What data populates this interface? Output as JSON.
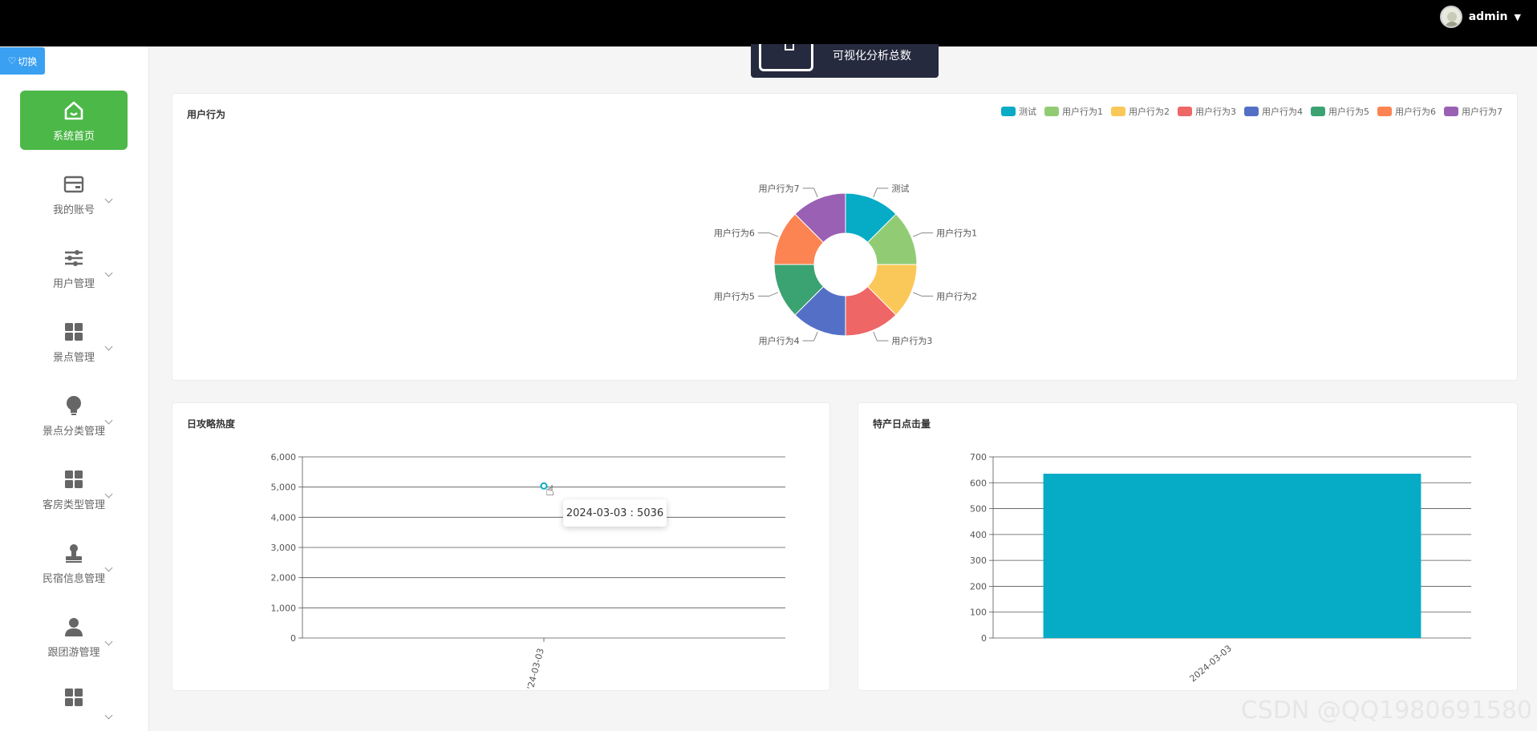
{
  "topbar": {
    "username": "admin",
    "caret": "▼"
  },
  "switch_button": {
    "label": "切换",
    "icon": "heart-icon"
  },
  "sidebar": {
    "items": [
      {
        "label": "系统首页",
        "icon": "home-icon",
        "active": true
      },
      {
        "label": "我的账号",
        "icon": "wallet-icon"
      },
      {
        "label": "用户管理",
        "icon": "sliders-icon"
      },
      {
        "label": "景点管理",
        "icon": "grid-icon"
      },
      {
        "label": "景点分类管理",
        "icon": "bulb-icon"
      },
      {
        "label": "客房类型管理",
        "icon": "grid-icon"
      },
      {
        "label": "民宿信息管理",
        "icon": "stamp-icon"
      },
      {
        "label": "跟团游管理",
        "icon": "user-icon"
      },
      {
        "label": "",
        "icon": "grid-icon"
      }
    ]
  },
  "stat_card": {
    "label": "可视化分析总数"
  },
  "pie_panel": {
    "title": "用户行为"
  },
  "line_panel": {
    "title": "日攻略热度",
    "tooltip": "2024-03-03 : 5036"
  },
  "bar_panel": {
    "title": "特产日点击量"
  },
  "watermark": "CSDN @QQ1980691580",
  "chart_data": [
    {
      "type": "pie",
      "title": "用户行为",
      "donut": true,
      "legend_position": "top-right",
      "categories": [
        "测试",
        "用户行为1",
        "用户行为2",
        "用户行为3",
        "用户行为4",
        "用户行为5",
        "用户行为6",
        "用户行为7"
      ],
      "values": [
        1,
        1,
        1,
        1,
        1,
        1,
        1,
        1
      ],
      "colors": [
        "#06abc6",
        "#91cc75",
        "#fac858",
        "#ee6666",
        "#5470c6",
        "#3ba272",
        "#fc8452",
        "#9a60b4"
      ]
    },
    {
      "type": "line",
      "title": "日攻略热度",
      "categories": [
        "2024-03-03"
      ],
      "x_tick_label": "'24-03-03",
      "values": [
        5036
      ],
      "ylim": [
        0,
        6000
      ],
      "yticks": [
        "0",
        "1,000",
        "2,000",
        "3,000",
        "4,000",
        "5,000",
        "6,000"
      ],
      "grid": true,
      "color": "#06abc6"
    },
    {
      "type": "bar",
      "title": "特产日点击量",
      "categories": [
        "2024-03-03"
      ],
      "values": [
        635
      ],
      "ylim": [
        0,
        700
      ],
      "yticks": [
        "0",
        "100",
        "200",
        "300",
        "400",
        "500",
        "600",
        "700"
      ],
      "grid": true,
      "color": "#06abc6"
    }
  ]
}
